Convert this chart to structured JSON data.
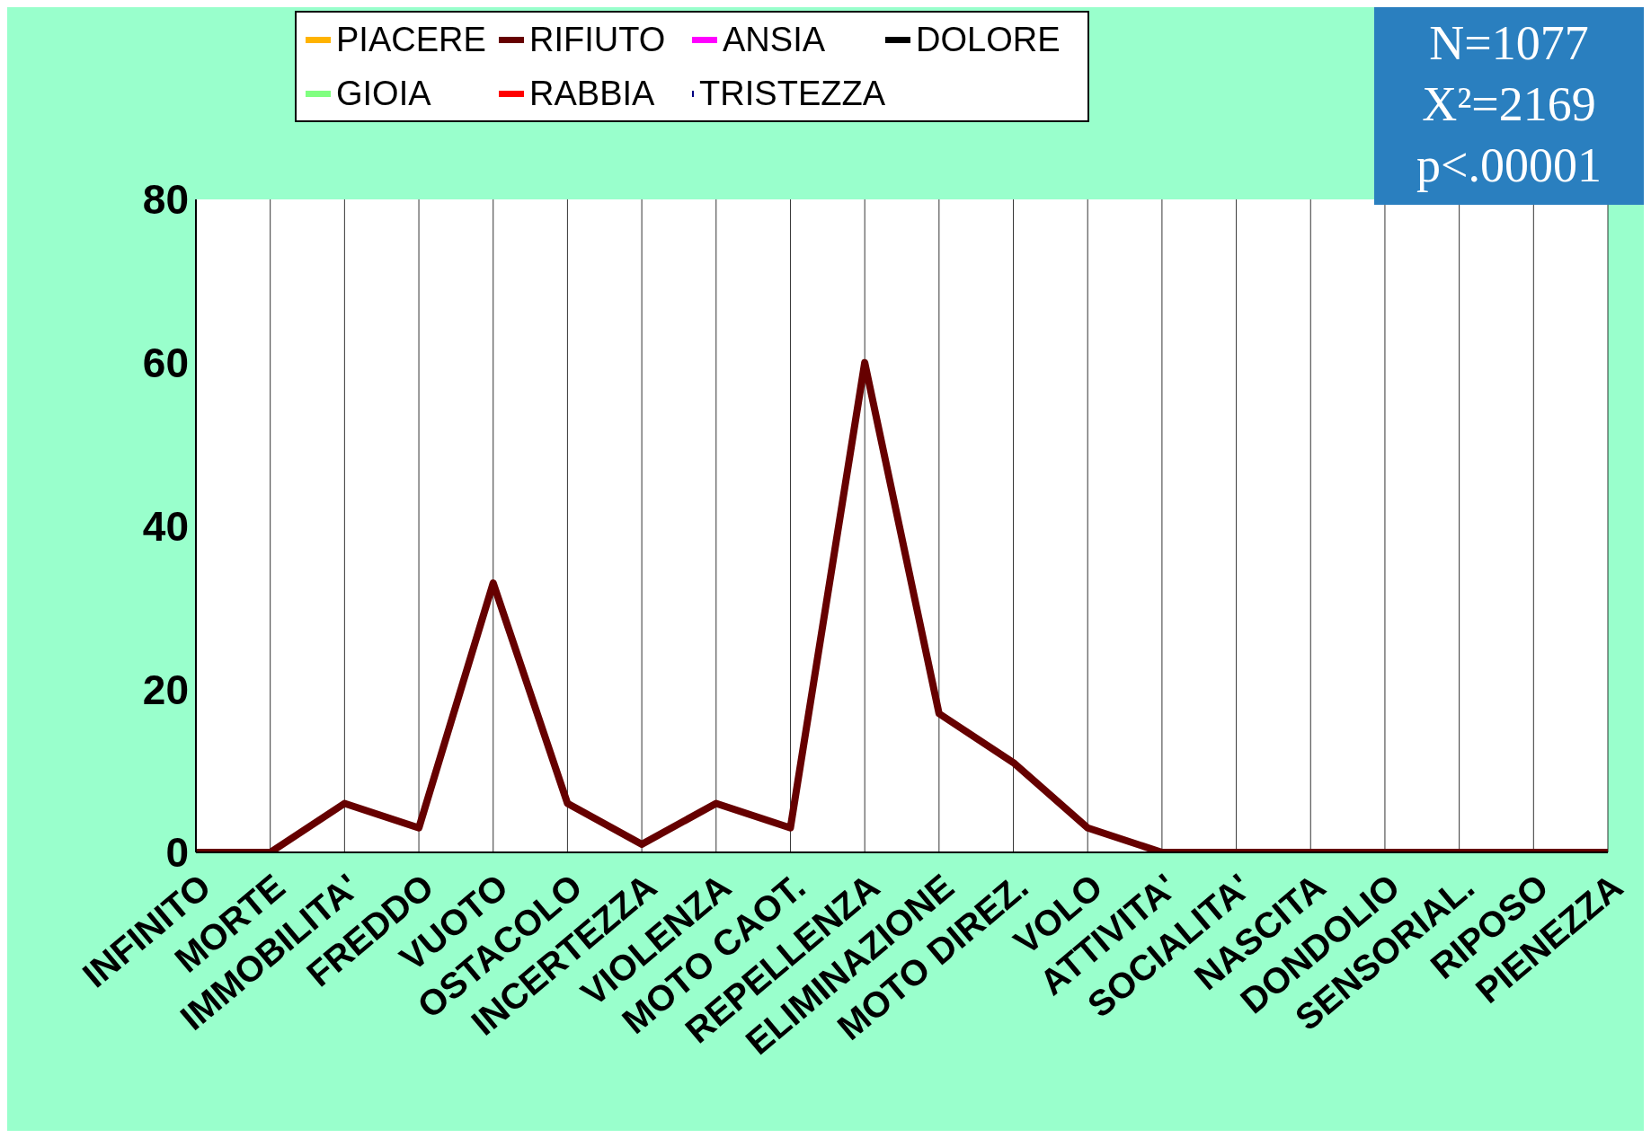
{
  "chart_data": {
    "type": "line",
    "categories": [
      "INFINITO",
      "MORTE",
      "IMMOBILITA'",
      "FREDDO",
      "VUOTO",
      "OSTACOLO",
      "INCERTEZZA",
      "VIOLENZA",
      "MOTO CAOT.",
      "REPELLENZA",
      "ELIMINAZIONE",
      "MOTO DIREZ.",
      "VOLO",
      "ATTIVITA'",
      "SOCIALITA'",
      "NASCITA",
      "DONDOLIO",
      "SENSORIAL.",
      "RIPOSO",
      "PIENEZZA"
    ],
    "series": [
      {
        "name": "PIACERE",
        "color": "#ffb300",
        "values": [
          null,
          null,
          null,
          null,
          null,
          null,
          null,
          null,
          null,
          null,
          null,
          null,
          null,
          null,
          null,
          null,
          null,
          null,
          null,
          null
        ]
      },
      {
        "name": "GIOIA",
        "color": "#80ff80",
        "values": [
          null,
          null,
          null,
          null,
          null,
          null,
          null,
          null,
          null,
          null,
          null,
          null,
          null,
          null,
          null,
          null,
          null,
          null,
          null,
          null
        ]
      },
      {
        "name": "RIFIUTO",
        "color": "#660000",
        "values": [
          0,
          0,
          6,
          3,
          33,
          6,
          1,
          6,
          3,
          60,
          17,
          11,
          3,
          0,
          0,
          0,
          0,
          0,
          0,
          0
        ]
      },
      {
        "name": "RABBIA",
        "color": "#ff0000",
        "values": [
          null,
          null,
          null,
          null,
          null,
          null,
          null,
          null,
          null,
          null,
          null,
          null,
          null,
          null,
          null,
          null,
          null,
          null,
          null,
          null
        ]
      },
      {
        "name": "ANSIA",
        "color": "#ff00ff",
        "values": [
          null,
          null,
          null,
          null,
          null,
          null,
          null,
          null,
          null,
          null,
          null,
          null,
          null,
          null,
          null,
          null,
          null,
          null,
          null,
          null
        ]
      },
      {
        "name": "TRISTEZZA",
        "color": "#000080",
        "values": [
          null,
          null,
          null,
          null,
          null,
          null,
          null,
          null,
          null,
          null,
          null,
          null,
          null,
          null,
          null,
          null,
          null,
          null,
          null,
          null
        ]
      },
      {
        "name": "DOLORE",
        "color": "#000000",
        "values": [
          null,
          null,
          null,
          null,
          null,
          null,
          null,
          null,
          null,
          null,
          null,
          null,
          null,
          null,
          null,
          null,
          null,
          null,
          null,
          null
        ]
      }
    ],
    "ylim": [
      0,
      80
    ],
    "yticks": [
      0,
      20,
      40,
      60,
      80
    ],
    "grid": "x",
    "legend": "top",
    "annotations": [
      "N=1077",
      "X²=2169",
      "p<.00001"
    ]
  }
}
